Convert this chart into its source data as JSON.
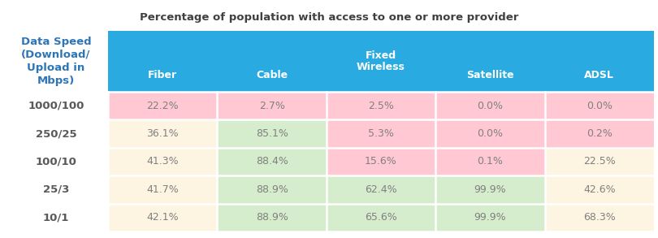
{
  "title": "Percentage of population with access to one or more provider",
  "row_header_label": "Data Speed\n(Download/\nUpload in\nMbps)",
  "col_headers": [
    "Fiber",
    "Cable",
    "Fixed\nWireless",
    "Satellite",
    "ADSL"
  ],
  "row_labels": [
    "1000/100",
    "250/25",
    "100/10",
    "25/3",
    "10/1"
  ],
  "data": [
    [
      "22.2%",
      "2.7%",
      "2.5%",
      "0.0%",
      "0.0%"
    ],
    [
      "36.1%",
      "85.1%",
      "5.3%",
      "0.0%",
      "0.2%"
    ],
    [
      "41.3%",
      "88.4%",
      "15.6%",
      "0.1%",
      "22.5%"
    ],
    [
      "41.7%",
      "88.9%",
      "62.4%",
      "99.9%",
      "42.6%"
    ],
    [
      "42.1%",
      "88.9%",
      "65.6%",
      "99.9%",
      "68.3%"
    ]
  ],
  "cell_colors": [
    [
      "#ffc8d2",
      "#ffc8d2",
      "#ffc8d2",
      "#ffc8d2",
      "#ffc8d2"
    ],
    [
      "#fdf5e2",
      "#d5edcc",
      "#ffc8d2",
      "#ffc8d2",
      "#ffc8d2"
    ],
    [
      "#fdf5e2",
      "#d5edcc",
      "#ffc8d2",
      "#ffc8d2",
      "#fdf5e2"
    ],
    [
      "#fdf5e2",
      "#d5edcc",
      "#d5edcc",
      "#d5edcc",
      "#fdf5e2"
    ],
    [
      "#fdf5e2",
      "#d5edcc",
      "#d5edcc",
      "#d5edcc",
      "#fdf5e2"
    ]
  ],
  "header_bg_color": "#29abe2",
  "header_text_color": "#ffffff",
  "row_label_color": "#595959",
  "data_text_color": "#808080",
  "title_color": "#404040",
  "background_color": "#ffffff",
  "title_fontsize": 9.5,
  "header_fontsize": 9.0,
  "data_fontsize": 9.0,
  "row_label_fontsize": 9.5
}
